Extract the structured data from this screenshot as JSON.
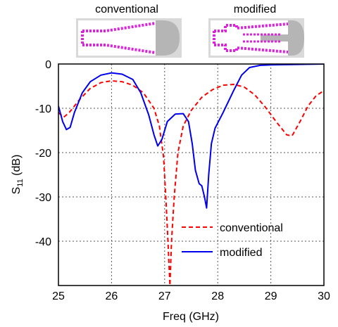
{
  "insets": [
    {
      "title": "conventional"
    },
    {
      "title": "modified"
    }
  ],
  "chart_data": {
    "type": "line",
    "title": "",
    "xlabel": "Freq (GHz)",
    "ylabel_main": "S",
    "ylabel_sub": "11",
    "ylabel_unit": " (dB)",
    "xlim": [
      25,
      30
    ],
    "ylim": [
      -50,
      0
    ],
    "xticks": [
      25,
      26,
      27,
      28,
      29,
      30
    ],
    "yticks": [
      0,
      -10,
      -20,
      -30,
      -40
    ],
    "grid": true,
    "legend_position": "bottom-right",
    "series": [
      {
        "name": "conventional",
        "color": "#ff0000",
        "style": "dashed",
        "x": [
          25.0,
          25.1,
          25.2,
          25.4,
          25.6,
          25.8,
          26.0,
          26.2,
          26.4,
          26.6,
          26.8,
          26.9,
          26.98,
          27.03,
          27.07,
          27.1,
          27.13,
          27.18,
          27.25,
          27.35,
          27.5,
          27.7,
          27.9,
          28.1,
          28.3,
          28.5,
          28.7,
          28.9,
          29.1,
          29.3,
          29.4,
          29.55,
          29.7,
          29.85,
          30.0
        ],
        "y": [
          -11,
          -12,
          -11,
          -8,
          -5.5,
          -4.2,
          -3.8,
          -4.0,
          -4.8,
          -6.5,
          -10,
          -14,
          -21,
          -32,
          -42,
          -50,
          -40,
          -30,
          -20,
          -14,
          -10.5,
          -7.5,
          -5.8,
          -4.8,
          -4.6,
          -5.2,
          -7,
          -9.8,
          -13,
          -16,
          -16.2,
          -13,
          -9.5,
          -7.2,
          -6
        ]
      },
      {
        "name": "modified",
        "color": "#0000ee",
        "style": "solid",
        "x": [
          25.0,
          25.08,
          25.15,
          25.22,
          25.3,
          25.45,
          25.6,
          25.8,
          26.0,
          26.2,
          26.4,
          26.55,
          26.7,
          26.8,
          26.87,
          26.95,
          27.05,
          27.2,
          27.35,
          27.45,
          27.52,
          27.58,
          27.65,
          27.7,
          27.75,
          27.79,
          27.83,
          27.88,
          27.95,
          28.1,
          28.3,
          28.45,
          28.6,
          28.8,
          29.0,
          29.5,
          30.0
        ],
        "y": [
          -9.5,
          -13,
          -14.8,
          -14.3,
          -11,
          -6.5,
          -4,
          -2.5,
          -2.0,
          -2.3,
          -3.5,
          -6.5,
          -11.5,
          -16,
          -18.5,
          -17,
          -13,
          -11.3,
          -11.2,
          -13,
          -18,
          -24,
          -27,
          -27.5,
          -30,
          -32.5,
          -25,
          -18,
          -14.5,
          -11,
          -6,
          -2.5,
          -0.8,
          -0.3,
          -0.2,
          -0.1,
          0
        ]
      }
    ]
  }
}
